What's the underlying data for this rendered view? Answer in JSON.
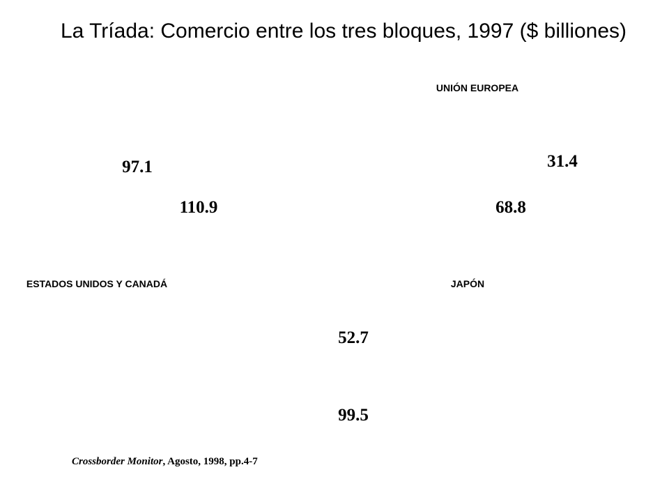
{
  "title": "La Tríada: Comercio entre los tres bloques, 1997 ($ billiones)",
  "regions": {
    "eu": "UNIÓN EUROPEA",
    "us": "ESTADOS UNIDOS Y CANADÁ",
    "jp": "JAPÓN"
  },
  "flows": [
    "97.1",
    "31.4",
    "110.9",
    "68.8",
    "52.7",
    "99.5"
  ],
  "source": {
    "publication": "Crossborder Monitor",
    "details": ", Agosto, 1998, pp.4-7"
  }
}
